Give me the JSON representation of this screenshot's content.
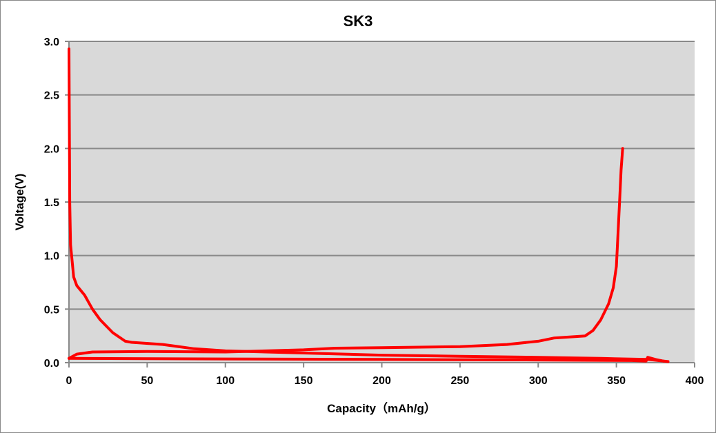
{
  "chart_data": {
    "type": "line",
    "title": "SK3",
    "xlabel": "Capacity（mAh/g）",
    "ylabel": "Voltage(V)",
    "xlim": [
      0,
      400
    ],
    "ylim": [
      0,
      3.0
    ],
    "xticks": [
      "0",
      "50",
      "100",
      "150",
      "200",
      "250",
      "300",
      "350",
      "400"
    ],
    "yticks": [
      "0.0",
      "0.5",
      "1.0",
      "1.5",
      "2.0",
      "2.5",
      "3.0"
    ],
    "grid": "horizontal",
    "legend": "none",
    "plot_background": "#d9d9d9",
    "series_color": "#ff0000",
    "series": [
      {
        "points": [
          [
            0,
            2.93
          ],
          [
            0.5,
            1.5
          ],
          [
            1,
            1.1
          ],
          [
            3,
            0.8
          ],
          [
            5,
            0.72
          ],
          [
            10,
            0.63
          ],
          [
            15,
            0.5
          ],
          [
            20,
            0.4
          ],
          [
            28,
            0.28
          ],
          [
            36,
            0.2
          ],
          [
            40,
            0.19
          ],
          [
            60,
            0.17
          ],
          [
            80,
            0.13
          ],
          [
            100,
            0.11
          ],
          [
            150,
            0.09
          ],
          [
            200,
            0.07
          ],
          [
            250,
            0.06
          ],
          [
            300,
            0.05
          ],
          [
            340,
            0.04
          ],
          [
            370,
            0.03
          ],
          [
            383,
            0.01
          ]
        ]
      },
      {
        "points": [
          [
            0,
            0.04
          ],
          [
            5,
            0.08
          ],
          [
            15,
            0.1
          ],
          [
            50,
            0.105
          ],
          [
            100,
            0.1
          ],
          [
            150,
            0.12
          ],
          [
            170,
            0.135
          ],
          [
            200,
            0.14
          ],
          [
            250,
            0.15
          ],
          [
            280,
            0.17
          ],
          [
            300,
            0.2
          ],
          [
            310,
            0.23
          ],
          [
            330,
            0.25
          ],
          [
            335,
            0.3
          ],
          [
            340,
            0.4
          ],
          [
            345,
            0.55
          ],
          [
            348,
            0.7
          ],
          [
            350,
            0.9
          ],
          [
            351,
            1.2
          ],
          [
            352,
            1.5
          ],
          [
            353,
            1.8
          ],
          [
            354,
            2.0
          ]
        ]
      },
      {
        "points": [
          [
            0,
            0.04
          ],
          [
            100,
            0.035
          ],
          [
            200,
            0.03
          ],
          [
            300,
            0.025
          ],
          [
            360,
            0.02
          ],
          [
            369,
            0.015
          ],
          [
            370,
            0.05
          ],
          [
            375,
            0.03
          ],
          [
            380,
            0.015
          ]
        ]
      }
    ]
  }
}
